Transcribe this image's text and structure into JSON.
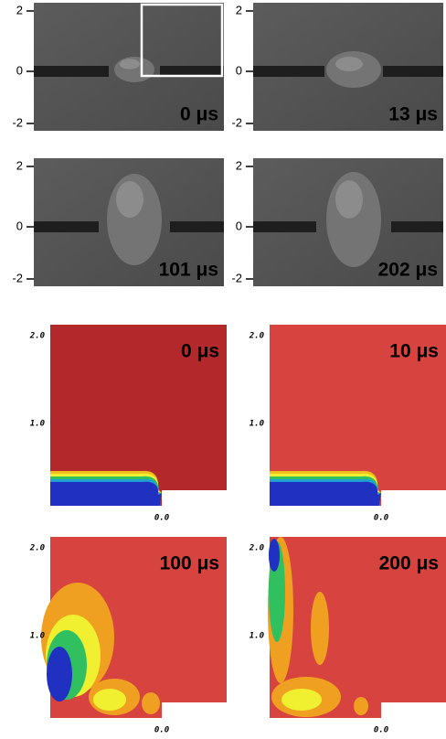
{
  "experiment": {
    "panels": [
      {
        "label": "0 μs",
        "yticks": [
          "2",
          "0",
          "-2"
        ]
      },
      {
        "label": "13 μs",
        "yticks": [
          "2",
          "0",
          "-2"
        ]
      },
      {
        "label": "101 μs",
        "yticks": [
          "2",
          "0",
          "-2"
        ]
      },
      {
        "label": "202 μs",
        "yticks": [
          "2",
          "0",
          "-2"
        ]
      }
    ]
  },
  "simulation": {
    "panels": [
      {
        "label": "0 μs",
        "yticks": [
          "2.0",
          "1.0"
        ],
        "xtick": "0.0"
      },
      {
        "label": "10 μs",
        "yticks": [
          "2.0",
          "1.0"
        ],
        "xtick": "0.0"
      },
      {
        "label": "100 μs",
        "yticks": [
          "2.0",
          "1.0"
        ],
        "xtick": "0.0"
      },
      {
        "label": "200 μs",
        "yticks": [
          "2.0",
          "1.0"
        ],
        "xtick": "0.0"
      }
    ]
  }
}
